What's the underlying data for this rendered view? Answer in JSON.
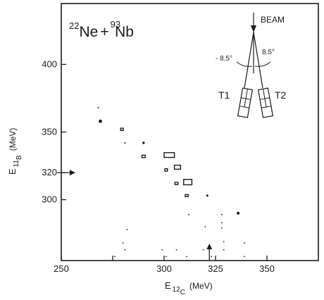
{
  "chart_data": {
    "type": "scatter",
    "title_parts": {
      "a_mass": "22",
      "a_sym": "Ne",
      "plus": "+",
      "b_mass": "93",
      "b_sym": "Nb"
    },
    "xlabel": {
      "main": "E",
      "sub": "12",
      "subsub": "C",
      "unit": "(MeV)"
    },
    "ylabel": {
      "main": "E",
      "sub": "11",
      "subsub": "B",
      "unit": "(MeV)"
    },
    "xlim": [
      250,
      375
    ],
    "ylim": [
      255,
      445
    ],
    "x_ticks": [
      {
        "value": 250,
        "label": "250"
      },
      {
        "value": 275,
        "label": ""
      },
      {
        "value": 300,
        "label": "300"
      },
      {
        "value": 325,
        "label": "325"
      },
      {
        "value": 350,
        "label": "350"
      }
    ],
    "y_ticks": [
      {
        "value": 300,
        "label": "300"
      },
      {
        "value": 320,
        "label": "320"
      },
      {
        "value": 350,
        "label": "350"
      },
      {
        "value": 400,
        "label": "400"
      }
    ],
    "contours": [
      {
        "x": 302.5,
        "y": 333,
        "w": 5,
        "h": 3.5
      },
      {
        "x": 306.5,
        "y": 324,
        "w": 3,
        "h": 3
      },
      {
        "x": 311.5,
        "y": 313,
        "w": 4,
        "h": 4
      },
      {
        "x": 301,
        "y": 322,
        "w": 1.3,
        "h": 1.8
      },
      {
        "x": 306,
        "y": 312,
        "w": 1.5,
        "h": 1.7
      },
      {
        "x": 311,
        "y": 303,
        "w": 1.5,
        "h": 1.5
      },
      {
        "x": 290,
        "y": 332,
        "w": 1.6,
        "h": 1.8
      },
      {
        "x": 279.5,
        "y": 352,
        "w": 1.3,
        "h": 1.7
      }
    ],
    "points": [
      {
        "x": 269,
        "y": 358,
        "size": 2.4
      },
      {
        "x": 268,
        "y": 368,
        "size": 1.0
      },
      {
        "x": 290,
        "y": 342,
        "size": 1.7
      },
      {
        "x": 281,
        "y": 342,
        "size": 1.0
      },
      {
        "x": 321,
        "y": 303,
        "size": 1.5
      },
      {
        "x": 336,
        "y": 290,
        "size": 2.0
      },
      {
        "x": 312,
        "y": 289,
        "size": 0.9
      },
      {
        "x": 328,
        "y": 289,
        "size": 0.9
      },
      {
        "x": 320,
        "y": 280,
        "size": 0.9
      },
      {
        "x": 328,
        "y": 283,
        "size": 0.9
      },
      {
        "x": 328,
        "y": 279,
        "size": 0.9
      },
      {
        "x": 282,
        "y": 278,
        "size": 0.9
      },
      {
        "x": 329,
        "y": 269,
        "size": 0.9
      },
      {
        "x": 339,
        "y": 268,
        "size": 0.9
      },
      {
        "x": 280,
        "y": 268,
        "size": 0.9
      },
      {
        "x": 281,
        "y": 263,
        "size": 0.9
      },
      {
        "x": 299,
        "y": 263,
        "size": 0.9
      },
      {
        "x": 306,
        "y": 263,
        "size": 0.9
      },
      {
        "x": 319,
        "y": 263,
        "size": 0.9
      },
      {
        "x": 329,
        "y": 263,
        "size": 0.9
      },
      {
        "x": 276,
        "y": 258,
        "size": 0.9
      },
      {
        "x": 301,
        "y": 258,
        "size": 0.9
      },
      {
        "x": 311,
        "y": 258,
        "size": 0.9
      },
      {
        "x": 323,
        "y": 258,
        "size": 0.9
      },
      {
        "x": 339,
        "y": 258,
        "size": 0.9
      }
    ],
    "arrow_marks": [
      {
        "axis": "y",
        "value": 320
      },
      {
        "axis": "x",
        "value": 322
      }
    ],
    "grid": false,
    "inset": {
      "beam_label": "BEAM",
      "left_angle": "- 8.5°",
      "right_angle": "8.5°",
      "t1_label": "T1",
      "t2_label": "T2"
    }
  }
}
